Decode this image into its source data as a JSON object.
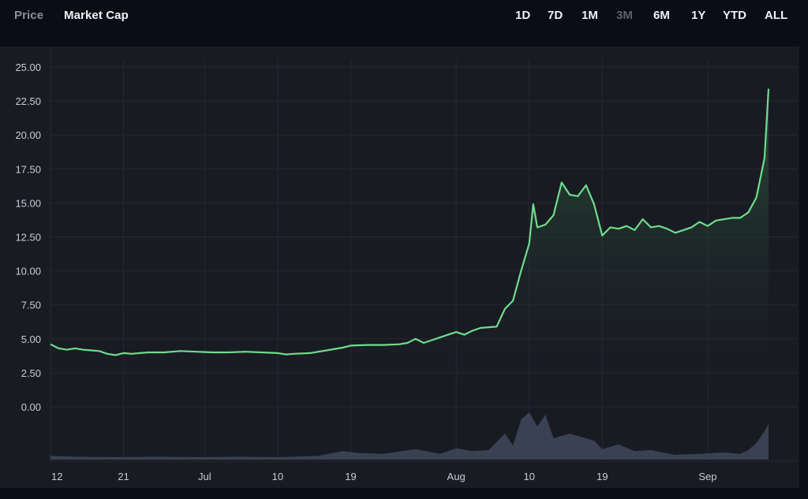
{
  "tabs": {
    "metrics": [
      {
        "label": "Price",
        "active": false
      },
      {
        "label": "Market Cap",
        "active": true
      }
    ],
    "ranges": [
      {
        "label": "1D",
        "selected": false
      },
      {
        "label": "7D",
        "selected": false
      },
      {
        "label": "1M",
        "selected": false
      },
      {
        "label": "3M",
        "selected": true
      },
      {
        "label": "6M",
        "selected": false
      },
      {
        "label": "1Y",
        "selected": false
      },
      {
        "label": "YTD",
        "selected": false
      },
      {
        "label": "ALL",
        "selected": false
      }
    ]
  },
  "colors": {
    "line": "#6fdc8c",
    "area_top": "#2d5a3d",
    "volume": "#3d4658",
    "panel": "#191b23",
    "grid": "#252833"
  },
  "chart_data": {
    "type": "area",
    "title": "",
    "xlabel": "",
    "ylabel": "",
    "ylim": [
      0,
      25
    ],
    "y_ticks": [
      "25.00",
      "22.50",
      "20.00",
      "17.50",
      "15.00",
      "12.50",
      "10.00",
      "7.50",
      "5.00",
      "2.50",
      "0.00"
    ],
    "x_ticks": [
      "12",
      "21",
      "Jul",
      "10",
      "19",
      "Aug",
      "10",
      "19",
      "Sep"
    ],
    "x_range": [
      "2021-06-12",
      "2021-09-12"
    ],
    "series": [
      {
        "type": "line",
        "points": [
          [
            "2021-06-12",
            4.6
          ],
          [
            "2021-06-13",
            4.3
          ],
          [
            "2021-06-14",
            4.2
          ],
          [
            "2021-06-15",
            4.3
          ],
          [
            "2021-06-16",
            4.2
          ],
          [
            "2021-06-18",
            4.1
          ],
          [
            "2021-06-19",
            3.9
          ],
          [
            "2021-06-20",
            3.8
          ],
          [
            "2021-06-21",
            3.95
          ],
          [
            "2021-06-22",
            3.9
          ],
          [
            "2021-06-24",
            4.0
          ],
          [
            "2021-06-26",
            4.0
          ],
          [
            "2021-06-28",
            4.1
          ],
          [
            "2021-06-30",
            4.05
          ],
          [
            "2021-07-02",
            4.0
          ],
          [
            "2021-07-04",
            4.0
          ],
          [
            "2021-07-06",
            4.05
          ],
          [
            "2021-07-08",
            4.0
          ],
          [
            "2021-07-10",
            3.95
          ],
          [
            "2021-07-11",
            3.85
          ],
          [
            "2021-07-12",
            3.9
          ],
          [
            "2021-07-14",
            3.95
          ],
          [
            "2021-07-16",
            4.15
          ],
          [
            "2021-07-18",
            4.35
          ],
          [
            "2021-07-19",
            4.5
          ],
          [
            "2021-07-21",
            4.55
          ],
          [
            "2021-07-23",
            4.55
          ],
          [
            "2021-07-25",
            4.6
          ],
          [
            "2021-07-26",
            4.7
          ],
          [
            "2021-07-27",
            5.0
          ],
          [
            "2021-07-28",
            4.7
          ],
          [
            "2021-07-29",
            4.9
          ],
          [
            "2021-07-30",
            5.1
          ],
          [
            "2021-07-31",
            5.3
          ],
          [
            "2021-08-01",
            5.5
          ],
          [
            "2021-08-02",
            5.3
          ],
          [
            "2021-08-03",
            5.6
          ],
          [
            "2021-08-04",
            5.8
          ],
          [
            "2021-08-05",
            5.85
          ],
          [
            "2021-08-06",
            5.9
          ],
          [
            "2021-08-07",
            7.2
          ],
          [
            "2021-08-08",
            7.8
          ],
          [
            "2021-08-09",
            10.0
          ],
          [
            "2021-08-10",
            12.0
          ],
          [
            "2021-08-10T12",
            14.9
          ],
          [
            "2021-08-11",
            13.2
          ],
          [
            "2021-08-12",
            13.4
          ],
          [
            "2021-08-13",
            14.1
          ],
          [
            "2021-08-14",
            16.5
          ],
          [
            "2021-08-15",
            15.6
          ],
          [
            "2021-08-16",
            15.5
          ],
          [
            "2021-08-17",
            16.3
          ],
          [
            "2021-08-18",
            14.9
          ],
          [
            "2021-08-19",
            12.6
          ],
          [
            "2021-08-20",
            13.2
          ],
          [
            "2021-08-21",
            13.1
          ],
          [
            "2021-08-22",
            13.3
          ],
          [
            "2021-08-23",
            13.0
          ],
          [
            "2021-08-24",
            13.8
          ],
          [
            "2021-08-25",
            13.2
          ],
          [
            "2021-08-26",
            13.3
          ],
          [
            "2021-08-27",
            13.1
          ],
          [
            "2021-08-28",
            12.8
          ],
          [
            "2021-08-29",
            13.0
          ],
          [
            "2021-08-30",
            13.2
          ],
          [
            "2021-08-31",
            13.6
          ],
          [
            "2021-09-01",
            13.3
          ],
          [
            "2021-09-02",
            13.7
          ],
          [
            "2021-09-03",
            13.8
          ],
          [
            "2021-09-04",
            13.9
          ],
          [
            "2021-09-05",
            13.9
          ],
          [
            "2021-09-06",
            14.3
          ],
          [
            "2021-09-07",
            15.4
          ],
          [
            "2021-09-08",
            18.3
          ],
          [
            "2021-09-08T12",
            23.4
          ]
        ]
      },
      {
        "type": "volume",
        "ylim": [
          0,
          1
        ],
        "points": [
          [
            "2021-06-12",
            0.08
          ],
          [
            "2021-06-15",
            0.06
          ],
          [
            "2021-06-20",
            0.05
          ],
          [
            "2021-06-25",
            0.06
          ],
          [
            "2021-07-01",
            0.05
          ],
          [
            "2021-07-05",
            0.06
          ],
          [
            "2021-07-10",
            0.05
          ],
          [
            "2021-07-15",
            0.08
          ],
          [
            "2021-07-18",
            0.18
          ],
          [
            "2021-07-20",
            0.14
          ],
          [
            "2021-07-23",
            0.12
          ],
          [
            "2021-07-27",
            0.22
          ],
          [
            "2021-07-30",
            0.12
          ],
          [
            "2021-08-01",
            0.24
          ],
          [
            "2021-08-03",
            0.18
          ],
          [
            "2021-08-05",
            0.2
          ],
          [
            "2021-08-07",
            0.55
          ],
          [
            "2021-08-08",
            0.3
          ],
          [
            "2021-08-09",
            0.85
          ],
          [
            "2021-08-10",
            1.0
          ],
          [
            "2021-08-11",
            0.7
          ],
          [
            "2021-08-12",
            0.95
          ],
          [
            "2021-08-13",
            0.45
          ],
          [
            "2021-08-15",
            0.55
          ],
          [
            "2021-08-16",
            0.5
          ],
          [
            "2021-08-18",
            0.4
          ],
          [
            "2021-08-19",
            0.22
          ],
          [
            "2021-08-21",
            0.32
          ],
          [
            "2021-08-23",
            0.18
          ],
          [
            "2021-08-25",
            0.2
          ],
          [
            "2021-08-28",
            0.1
          ],
          [
            "2021-08-31",
            0.12
          ],
          [
            "2021-09-03",
            0.15
          ],
          [
            "2021-09-05",
            0.12
          ],
          [
            "2021-09-06",
            0.2
          ],
          [
            "2021-09-07",
            0.35
          ],
          [
            "2021-09-08",
            0.6
          ],
          [
            "2021-09-08T12",
            0.75
          ]
        ]
      }
    ],
    "grid": true
  }
}
